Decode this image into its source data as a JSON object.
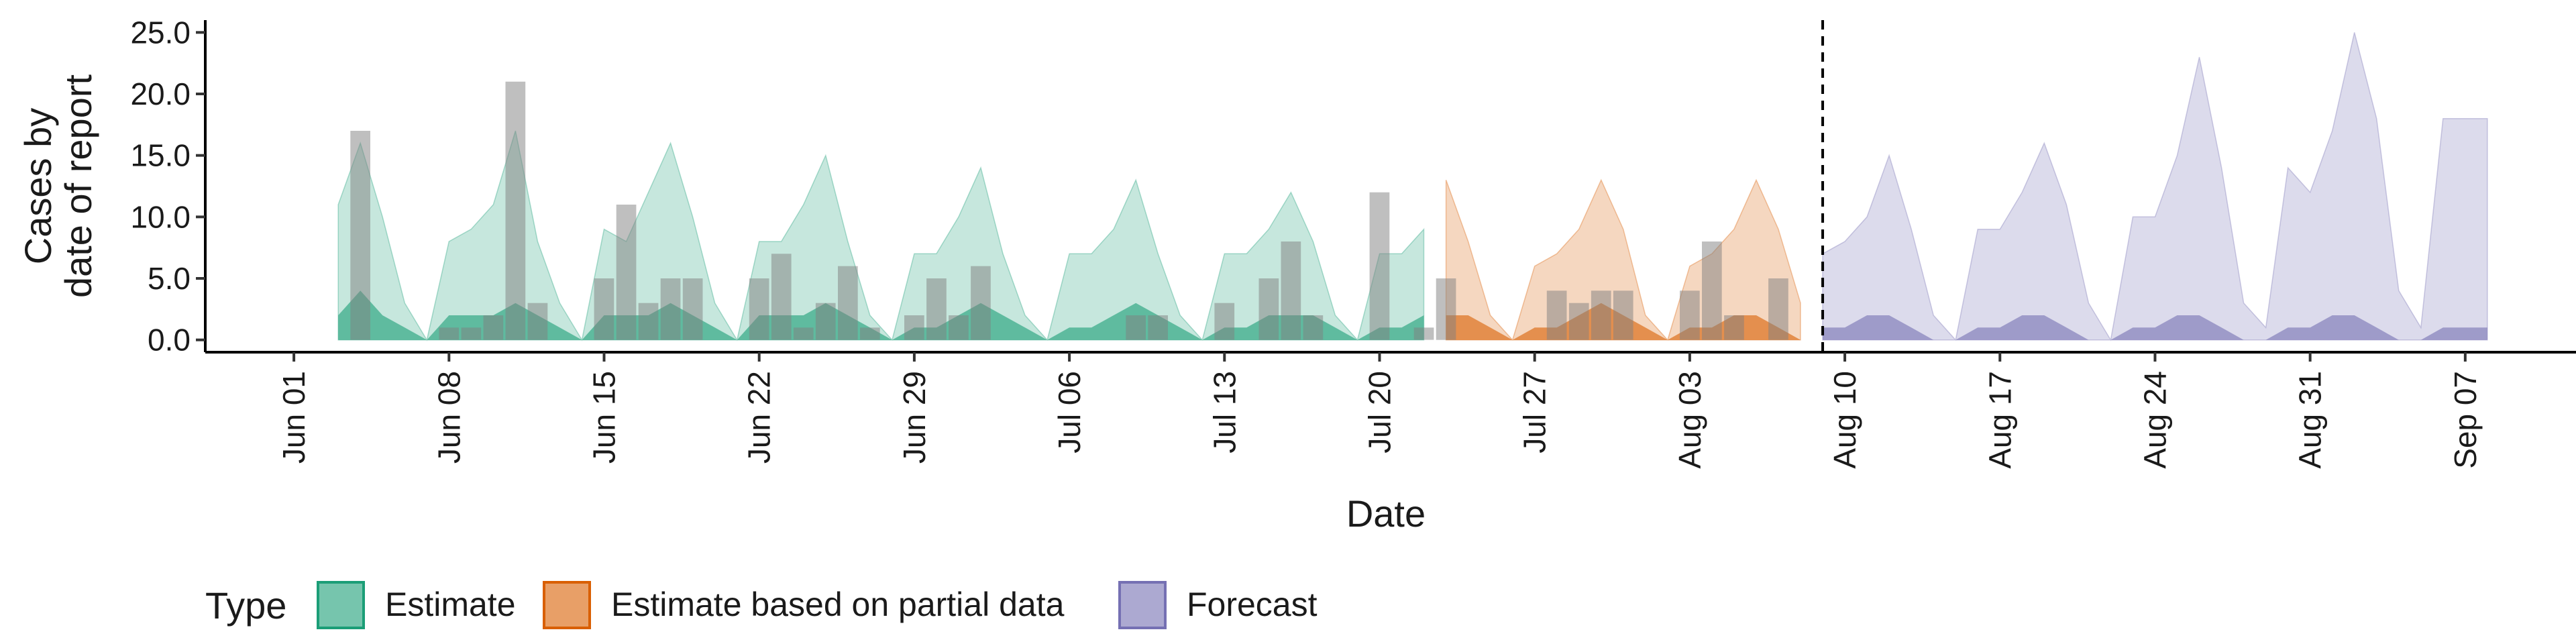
{
  "chart_data": {
    "type": "area",
    "title": "",
    "xlabel": "Date",
    "ylabel_lines": [
      "Cases by",
      "date of report"
    ],
    "ylim": [
      -1,
      26
    ],
    "yticks": [
      0,
      5,
      10,
      15,
      20,
      25
    ],
    "ytick_labels": [
      "0.0",
      "5.0",
      "10.0",
      "15.0",
      "20.0",
      "25.0"
    ],
    "xlim": [
      "2020-05-28",
      "2020-09-12"
    ],
    "xticks": [
      "2020-06-01",
      "2020-06-08",
      "2020-06-15",
      "2020-06-22",
      "2020-06-29",
      "2020-07-06",
      "2020-07-13",
      "2020-07-20",
      "2020-07-27",
      "2020-08-03",
      "2020-08-10",
      "2020-08-17",
      "2020-08-24",
      "2020-08-31",
      "2020-09-07"
    ],
    "xtick_labels": [
      "Jun 01",
      "Jun 08",
      "Jun 15",
      "Jun 22",
      "Jun 29",
      "Jul 06",
      "Jul 13",
      "Jul 20",
      "Jul 27",
      "Aug 03",
      "Aug 10",
      "Aug 17",
      "Aug 24",
      "Aug 31",
      "Sep 07"
    ],
    "forecast_start_line": "2020-08-09",
    "grid": false,
    "legend": {
      "title": "Type",
      "placement": "bottom-left",
      "items": [
        {
          "label": "Estimate",
          "color": "#1b9e77"
        },
        {
          "label": "Estimate based on partial data",
          "color": "#d95f02"
        },
        {
          "label": "Forecast",
          "color": "#7570b3"
        }
      ]
    },
    "series": [
      {
        "type": "Estimate",
        "color": "#1b9e77",
        "dates": [
          "2020-06-03",
          "2020-06-04",
          "2020-06-05",
          "2020-06-06",
          "2020-06-07",
          "2020-06-08",
          "2020-06-09",
          "2020-06-10",
          "2020-06-11",
          "2020-06-12",
          "2020-06-13",
          "2020-06-14",
          "2020-06-15",
          "2020-06-16",
          "2020-06-17",
          "2020-06-18",
          "2020-06-19",
          "2020-06-20",
          "2020-06-21",
          "2020-06-22",
          "2020-06-23",
          "2020-06-24",
          "2020-06-25",
          "2020-06-26",
          "2020-06-27",
          "2020-06-28",
          "2020-06-29",
          "2020-06-30",
          "2020-07-01",
          "2020-07-02",
          "2020-07-03",
          "2020-07-04",
          "2020-07-05",
          "2020-07-06",
          "2020-07-07",
          "2020-07-08",
          "2020-07-09",
          "2020-07-10",
          "2020-07-11",
          "2020-07-12",
          "2020-07-13",
          "2020-07-14",
          "2020-07-15",
          "2020-07-16",
          "2020-07-17",
          "2020-07-18",
          "2020-07-19",
          "2020-07-20",
          "2020-07-21",
          "2020-07-22"
        ],
        "upper": [
          11,
          16,
          10,
          3,
          0,
          8,
          9,
          11,
          17,
          8,
          3,
          0,
          9,
          8,
          12,
          16,
          10,
          3,
          0,
          8,
          8,
          11,
          15,
          8,
          2,
          0,
          7,
          7,
          10,
          14,
          7,
          2,
          0,
          7,
          7,
          9,
          13,
          7,
          2,
          0,
          7,
          7,
          9,
          12,
          8,
          2,
          0,
          7,
          7,
          9
        ],
        "median": [
          2,
          4,
          2,
          1,
          0,
          2,
          2,
          2,
          3,
          2,
          1,
          0,
          2,
          2,
          2,
          3,
          2,
          1,
          0,
          2,
          2,
          2,
          3,
          2,
          1,
          0,
          1,
          1,
          2,
          3,
          2,
          1,
          0,
          1,
          1,
          2,
          3,
          2,
          1,
          0,
          1,
          1,
          2,
          2,
          2,
          1,
          0,
          1,
          1,
          2
        ]
      },
      {
        "type": "Estimate based on partial data",
        "color": "#d95f02",
        "dates": [
          "2020-07-23",
          "2020-07-24",
          "2020-07-25",
          "2020-07-26",
          "2020-07-27",
          "2020-07-28",
          "2020-07-29",
          "2020-07-30",
          "2020-07-31",
          "2020-08-01",
          "2020-08-02",
          "2020-08-03",
          "2020-08-04",
          "2020-08-05",
          "2020-08-06",
          "2020-08-07",
          "2020-08-08"
        ],
        "upper": [
          13,
          8,
          2,
          0,
          6,
          7,
          9,
          13,
          9,
          2,
          0,
          6,
          7,
          9,
          13,
          9,
          3
        ],
        "median": [
          2,
          2,
          1,
          0,
          1,
          1,
          2,
          3,
          2,
          1,
          0,
          1,
          1,
          2,
          2,
          1,
          0
        ]
      },
      {
        "type": "Forecast",
        "color": "#7570b3",
        "dates": [
          "2020-08-09",
          "2020-08-10",
          "2020-08-11",
          "2020-08-12",
          "2020-08-13",
          "2020-08-14",
          "2020-08-15",
          "2020-08-16",
          "2020-08-17",
          "2020-08-18",
          "2020-08-19",
          "2020-08-20",
          "2020-08-21",
          "2020-08-22",
          "2020-08-23",
          "2020-08-24",
          "2020-08-25",
          "2020-08-26",
          "2020-08-27",
          "2020-08-28",
          "2020-08-29",
          "2020-08-30",
          "2020-08-31",
          "2020-09-01",
          "2020-09-02",
          "2020-09-03",
          "2020-09-04",
          "2020-09-05",
          "2020-09-06",
          "2020-09-07",
          "2020-09-08"
        ],
        "upper": [
          7,
          8,
          10,
          15,
          9,
          2,
          0,
          9,
          9,
          12,
          16,
          11,
          3,
          0,
          10,
          10,
          15,
          23,
          14,
          3,
          1,
          14,
          12,
          17,
          25,
          18,
          4,
          1,
          18,
          18,
          18
        ],
        "median": [
          1,
          1,
          2,
          2,
          1,
          0,
          0,
          1,
          1,
          2,
          2,
          1,
          0,
          0,
          1,
          1,
          2,
          2,
          1,
          0,
          0,
          1,
          1,
          2,
          2,
          1,
          0,
          0,
          1,
          1,
          1
        ]
      }
    ],
    "reported_cases": {
      "color": "#808080",
      "dates": [
        "2020-06-04",
        "2020-06-08",
        "2020-06-09",
        "2020-06-10",
        "2020-06-11",
        "2020-06-12",
        "2020-06-15",
        "2020-06-16",
        "2020-06-17",
        "2020-06-18",
        "2020-06-19",
        "2020-06-22",
        "2020-06-23",
        "2020-06-24",
        "2020-06-25",
        "2020-06-26",
        "2020-06-27",
        "2020-06-29",
        "2020-06-30",
        "2020-07-01",
        "2020-07-02",
        "2020-07-09",
        "2020-07-10",
        "2020-07-13",
        "2020-07-15",
        "2020-07-16",
        "2020-07-17",
        "2020-07-20",
        "2020-07-22",
        "2020-07-23",
        "2020-07-28",
        "2020-07-29",
        "2020-07-30",
        "2020-07-31",
        "2020-08-03",
        "2020-08-04",
        "2020-08-05",
        "2020-08-07"
      ],
      "values": [
        17,
        1,
        1,
        2,
        21,
        3,
        5,
        11,
        3,
        5,
        5,
        5,
        7,
        1,
        3,
        6,
        1,
        2,
        5,
        2,
        6,
        2,
        2,
        3,
        5,
        8,
        2,
        12,
        1,
        5,
        4,
        3,
        4,
        4,
        4,
        8,
        2,
        5
      ]
    }
  }
}
